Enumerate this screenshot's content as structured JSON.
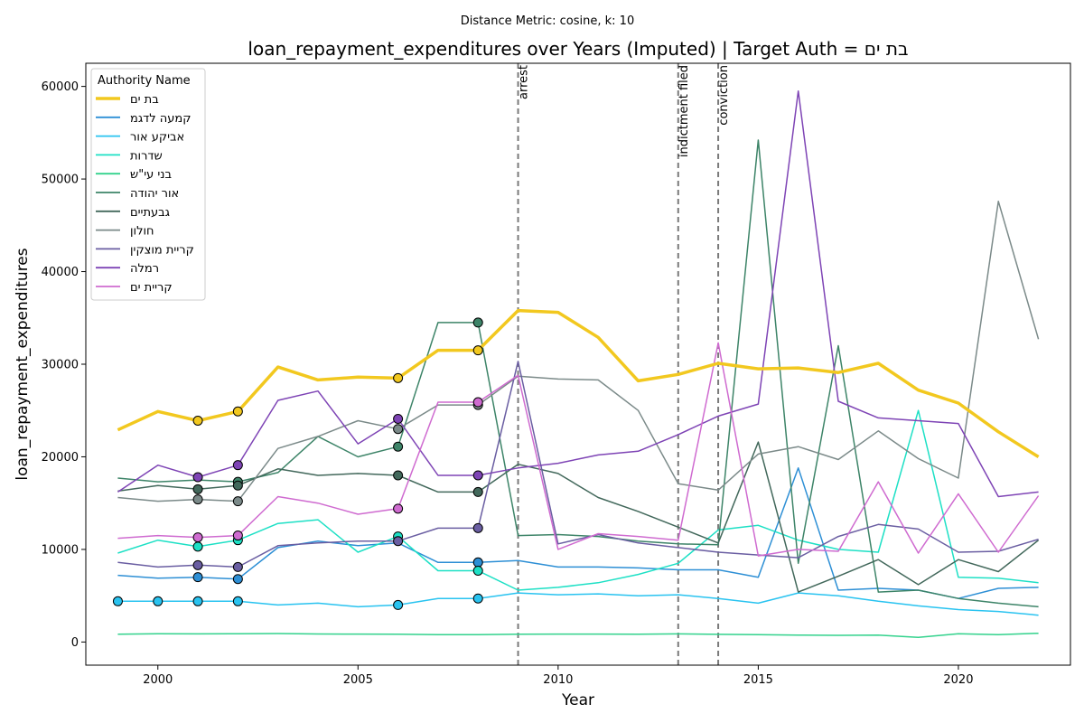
{
  "chart_data": {
    "type": "line",
    "suptitle": "Distance Metric: cosine, k: 10",
    "title": "loan_repayment_expenditures over Years (Imputed) | Target Auth = בת ים",
    "xlabel": "Year",
    "ylabel": "loan_repayment_expenditures",
    "xlim": [
      1998.2,
      2022.8
    ],
    "ylim": [
      -2500,
      62500
    ],
    "x_ticks": [
      2000,
      2005,
      2010,
      2015,
      2020
    ],
    "y_ticks": [
      0,
      10000,
      20000,
      30000,
      40000,
      50000,
      60000
    ],
    "grid": false,
    "legend": {
      "title": "Authority Name",
      "position": "top-left"
    },
    "years": [
      1999,
      2000,
      2001,
      2002,
      2003,
      2004,
      2005,
      2006,
      2007,
      2008,
      2009,
      2010,
      2011,
      2012,
      2013,
      2014,
      2015,
      2016,
      2017,
      2018,
      2019,
      2020,
      2021,
      2022
    ],
    "events": [
      {
        "label": "arrest",
        "year": 2009
      },
      {
        "label": "indictment filed",
        "year": 2013
      },
      {
        "label": "conviction",
        "year": 2014
      }
    ],
    "series": [
      {
        "name": "בת ים",
        "color": "#f2c81f",
        "linewidth": 3.5,
        "target": true,
        "values": [
          22900,
          24900,
          23900,
          24900,
          29700,
          28300,
          28600,
          28500,
          31500,
          31500,
          35800,
          35600,
          32900,
          28200,
          28900,
          30100,
          29500,
          29600,
          29100,
          30100,
          27200,
          25800,
          22700,
          20000
        ],
        "imputed_years": [
          2001,
          2002,
          2006,
          2008
        ]
      },
      {
        "name": "קמעה לדגמ",
        "color": "#2d8fd5",
        "linewidth": 1.5,
        "values": [
          7200,
          6900,
          7000,
          6800,
          10200,
          10900,
          10400,
          10700,
          8600,
          8600,
          8800,
          8100,
          8100,
          8000,
          7800,
          7800,
          7000,
          18800,
          5600,
          5800,
          5600,
          4700,
          5800,
          5900
        ],
        "imputed_years": [
          2001,
          2002,
          2008
        ]
      },
      {
        "name": "אביקע אור",
        "color": "#29c3f0",
        "linewidth": 1.5,
        "values": [
          4400,
          4400,
          4400,
          4400,
          4000,
          4200,
          3800,
          4000,
          4700,
          4700,
          5300,
          5100,
          5200,
          5000,
          5100,
          4700,
          4200,
          5300,
          5000,
          4400,
          3900,
          3500,
          3300,
          2900
        ],
        "imputed_years": [
          1999,
          2000,
          2001,
          2002,
          2006,
          2008
        ]
      },
      {
        "name": "שדרות",
        "color": "#1de0c5",
        "linewidth": 1.5,
        "values": [
          9600,
          11000,
          10300,
          11000,
          12800,
          13200,
          9700,
          11400,
          7700,
          7700,
          5600,
          5900,
          6400,
          7300,
          8500,
          12100,
          12600,
          11000,
          10000,
          9700,
          25000,
          7000,
          6900,
          6400
        ],
        "imputed_years": [
          2001,
          2002,
          2006,
          2008
        ]
      },
      {
        "name": "בני עי\"ש",
        "color": "#32d28c",
        "linewidth": 1.5,
        "values": [
          850,
          900,
          880,
          900,
          920,
          870,
          860,
          850,
          800,
          800,
          850,
          860,
          860,
          850,
          880,
          830,
          800,
          750,
          720,
          750,
          500,
          900,
          800,
          950
        ],
        "imputed_years": []
      },
      {
        "name": "אור יהודה",
        "color": "#3d8468",
        "linewidth": 1.5,
        "values": [
          17700,
          17300,
          17500,
          17300,
          18300,
          22200,
          20000,
          21100,
          34500,
          34500,
          11500,
          11600,
          11400,
          10900,
          10600,
          10500,
          54200,
          8500,
          32000,
          5400,
          5600,
          4700,
          4200,
          3800
        ],
        "imputed_years": [
          2002,
          2006,
          2008
        ]
      },
      {
        "name": "גבעתיים",
        "color": "#42685b",
        "linewidth": 1.5,
        "values": [
          16300,
          16900,
          16500,
          16900,
          18700,
          18000,
          18200,
          18000,
          16200,
          16200,
          19200,
          18200,
          15600,
          14100,
          12400,
          10700,
          21600,
          5400,
          7100,
          8900,
          6200,
          8900,
          7600,
          11000
        ],
        "imputed_years": [
          2001,
          2002,
          2006,
          2008
        ]
      },
      {
        "name": "חולון",
        "color": "#7b8a89",
        "linewidth": 1.5,
        "values": [
          15600,
          15200,
          15400,
          15200,
          20900,
          22200,
          23900,
          23000,
          25600,
          25600,
          28700,
          28400,
          28300,
          25000,
          17100,
          16400,
          20300,
          21100,
          19700,
          22800,
          19800,
          17700,
          47600,
          32700
        ],
        "imputed_years": [
          2001,
          2002,
          2006,
          2008
        ]
      },
      {
        "name": "קריית מוצקין",
        "color": "#6a5ea2",
        "linewidth": 1.5,
        "values": [
          8600,
          8100,
          8300,
          8100,
          10400,
          10700,
          10900,
          10900,
          12300,
          12300,
          30300,
          10600,
          11600,
          10700,
          10200,
          9700,
          9400,
          9100,
          11400,
          12700,
          12200,
          9700,
          9800,
          11100
        ],
        "imputed_years": [
          2001,
          2002,
          2006,
          2008
        ]
      },
      {
        "name": "רמלה",
        "color": "#7e44b5",
        "linewidth": 1.5,
        "values": [
          16200,
          19100,
          17800,
          19100,
          26100,
          27100,
          21400,
          24100,
          18000,
          18000,
          18800,
          19300,
          20200,
          20600,
          22400,
          24400,
          25700,
          59500,
          26000,
          24200,
          23900,
          23600,
          15700,
          16200
        ],
        "imputed_years": [
          2001,
          2002,
          2006,
          2008
        ]
      },
      {
        "name": "קריית ים",
        "color": "#cf6bd0",
        "linewidth": 1.5,
        "values": [
          11200,
          11500,
          11300,
          11500,
          15700,
          15000,
          13800,
          14400,
          25900,
          25900,
          28800,
          10000,
          11700,
          11400,
          11000,
          32300,
          9300,
          10000,
          9800,
          17300,
          9600,
          16000,
          9700,
          15800
        ],
        "imputed_years": [
          2001,
          2002,
          2006,
          2008
        ]
      }
    ]
  }
}
